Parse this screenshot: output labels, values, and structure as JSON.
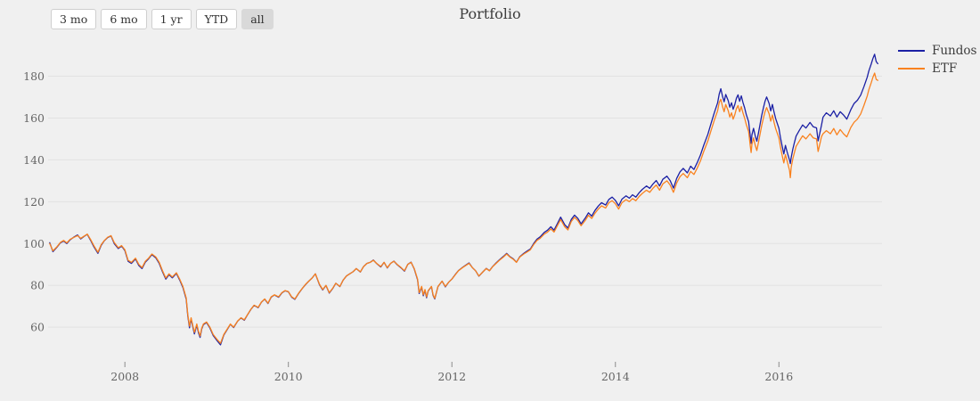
{
  "title": "Portfolio",
  "range_buttons": [
    {
      "label": "3 mo",
      "active": false
    },
    {
      "label": "6 mo",
      "active": false
    },
    {
      "label": "1 yr",
      "active": false
    },
    {
      "label": "YTD",
      "active": false
    },
    {
      "label": "all",
      "active": true
    }
  ],
  "colors": {
    "background": "#f0f0f0",
    "gridline": "#e2e2e2",
    "tick_mark": "#8c8c8c",
    "tick_text": "#666666",
    "fundos": "#1b20a4",
    "etf": "#f9821f"
  },
  "chart_data": {
    "type": "line",
    "title": "Portfolio",
    "xlabel": "",
    "ylabel": "",
    "legend_position": "right",
    "grid": "horizontal-only",
    "xlim": [
      2007.05,
      2017.25
    ],
    "ylim": [
      46,
      196
    ],
    "x_ticks": [
      2008,
      2010,
      2012,
      2014,
      2016
    ],
    "y_ticks": [
      60,
      80,
      100,
      120,
      140,
      160,
      180
    ],
    "series": [
      {
        "name": "Fundos",
        "color": "#1b20a4"
      },
      {
        "name": "ETF",
        "color": "#f9821f"
      }
    ],
    "points_format": [
      "year",
      "Fundos",
      "ETF"
    ],
    "points": [
      [
        2007.08,
        100.4,
        100.0
      ],
      [
        2007.12,
        96.1,
        96.5
      ],
      [
        2007.17,
        98.3,
        98.5
      ],
      [
        2007.21,
        100.3,
        100.5
      ],
      [
        2007.25,
        101.2,
        101.5
      ],
      [
        2007.29,
        100.0,
        100.3
      ],
      [
        2007.33,
        101.8,
        102.0
      ],
      [
        2007.38,
        103.2,
        103.0
      ],
      [
        2007.42,
        104.1,
        103.8
      ],
      [
        2007.46,
        102.2,
        102.5
      ],
      [
        2007.5,
        103.4,
        103.5
      ],
      [
        2007.54,
        104.4,
        104.5
      ],
      [
        2007.58,
        101.6,
        102.0
      ],
      [
        2007.62,
        98.5,
        99.0
      ],
      [
        2007.67,
        95.3,
        95.8
      ],
      [
        2007.71,
        99.2,
        99.5
      ],
      [
        2007.75,
        101.4,
        101.5
      ],
      [
        2007.79,
        102.9,
        103.0
      ],
      [
        2007.83,
        103.6,
        103.8
      ],
      [
        2007.87,
        100.0,
        100.5
      ],
      [
        2007.92,
        97.6,
        98.0
      ],
      [
        2007.96,
        98.8,
        99.0
      ],
      [
        2008.0,
        96.6,
        97.0
      ],
      [
        2008.04,
        91.5,
        92.0
      ],
      [
        2008.08,
        90.5,
        91.0
      ],
      [
        2008.13,
        92.6,
        93.0
      ],
      [
        2008.17,
        89.5,
        90.0
      ],
      [
        2008.21,
        88.0,
        88.5
      ],
      [
        2008.25,
        91.1,
        91.5
      ],
      [
        2008.29,
        92.7,
        93.0
      ],
      [
        2008.33,
        94.7,
        95.0
      ],
      [
        2008.38,
        93.1,
        93.5
      ],
      [
        2008.42,
        90.5,
        91.0
      ],
      [
        2008.46,
        86.5,
        87.0
      ],
      [
        2008.5,
        83.0,
        83.5
      ],
      [
        2008.54,
        85.1,
        85.5
      ],
      [
        2008.58,
        83.6,
        84.0
      ],
      [
        2008.63,
        85.7,
        86.0
      ],
      [
        2008.67,
        82.5,
        83.0
      ],
      [
        2008.71,
        79.0,
        79.5
      ],
      [
        2008.75,
        73.4,
        74.0
      ],
      [
        2008.77,
        65.3,
        66.0
      ],
      [
        2008.79,
        59.7,
        60.5
      ],
      [
        2008.81,
        64.0,
        64.5
      ],
      [
        2008.83,
        60.3,
        61.0
      ],
      [
        2008.85,
        56.8,
        57.5
      ],
      [
        2008.88,
        61.0,
        61.5
      ],
      [
        2008.9,
        57.3,
        58.0
      ],
      [
        2008.92,
        55.1,
        55.8
      ],
      [
        2008.94,
        59.1,
        59.5
      ],
      [
        2008.96,
        61.2,
        61.5
      ],
      [
        2009.0,
        62.2,
        62.5
      ],
      [
        2009.04,
        59.6,
        60.0
      ],
      [
        2009.08,
        56.0,
        56.5
      ],
      [
        2009.13,
        53.4,
        54.0
      ],
      [
        2009.17,
        51.6,
        52.3
      ],
      [
        2009.21,
        56.2,
        56.5
      ],
      [
        2009.25,
        58.8,
        59.0
      ],
      [
        2009.29,
        61.4,
        61.5
      ],
      [
        2009.33,
        59.8,
        60.0
      ],
      [
        2009.38,
        62.9,
        63.0
      ],
      [
        2009.42,
        64.4,
        64.5
      ],
      [
        2009.46,
        63.3,
        63.5
      ],
      [
        2009.5,
        65.9,
        66.0
      ],
      [
        2009.54,
        68.4,
        68.5
      ],
      [
        2009.58,
        70.4,
        70.5
      ],
      [
        2009.63,
        69.3,
        69.5
      ],
      [
        2009.67,
        71.9,
        72.0
      ],
      [
        2009.71,
        73.4,
        73.5
      ],
      [
        2009.75,
        71.3,
        71.5
      ],
      [
        2009.79,
        74.4,
        74.5
      ],
      [
        2009.83,
        75.4,
        75.5
      ],
      [
        2009.88,
        74.3,
        74.5
      ],
      [
        2009.92,
        76.4,
        76.5
      ],
      [
        2009.96,
        77.4,
        77.5
      ],
      [
        2010.0,
        76.9,
        77.0
      ],
      [
        2010.04,
        74.3,
        74.5
      ],
      [
        2010.08,
        73.3,
        73.5
      ],
      [
        2010.13,
        76.4,
        76.5
      ],
      [
        2010.17,
        78.5,
        78.5
      ],
      [
        2010.21,
        80.4,
        80.5
      ],
      [
        2010.25,
        82.0,
        82.0
      ],
      [
        2010.29,
        83.5,
        83.5
      ],
      [
        2010.33,
        85.5,
        85.5
      ],
      [
        2010.38,
        80.3,
        80.5
      ],
      [
        2010.42,
        77.8,
        78.0
      ],
      [
        2010.46,
        79.9,
        80.0
      ],
      [
        2010.5,
        76.3,
        76.5
      ],
      [
        2010.54,
        78.4,
        78.5
      ],
      [
        2010.58,
        81.0,
        81.0
      ],
      [
        2010.63,
        79.4,
        79.5
      ],
      [
        2010.67,
        82.5,
        82.5
      ],
      [
        2010.71,
        84.5,
        84.5
      ],
      [
        2010.75,
        85.5,
        85.5
      ],
      [
        2010.79,
        86.5,
        86.5
      ],
      [
        2010.83,
        88.0,
        88.0
      ],
      [
        2010.88,
        86.4,
        86.5
      ],
      [
        2010.92,
        89.0,
        89.0
      ],
      [
        2010.96,
        90.5,
        90.5
      ],
      [
        2011.0,
        91.0,
        91.0
      ],
      [
        2011.04,
        92.1,
        92.0
      ],
      [
        2011.08,
        90.4,
        90.5
      ],
      [
        2011.13,
        88.8,
        89.0
      ],
      [
        2011.17,
        91.0,
        91.0
      ],
      [
        2011.21,
        88.3,
        88.5
      ],
      [
        2011.25,
        90.5,
        90.5
      ],
      [
        2011.29,
        91.6,
        91.5
      ],
      [
        2011.33,
        89.9,
        90.0
      ],
      [
        2011.38,
        88.3,
        88.5
      ],
      [
        2011.42,
        86.8,
        87.0
      ],
      [
        2011.46,
        90.0,
        90.0
      ],
      [
        2011.5,
        91.1,
        91.0
      ],
      [
        2011.54,
        87.8,
        88.0
      ],
      [
        2011.58,
        82.7,
        83.0
      ],
      [
        2011.6,
        76.1,
        76.5
      ],
      [
        2011.63,
        79.2,
        79.5
      ],
      [
        2011.65,
        75.0,
        75.5
      ],
      [
        2011.67,
        77.7,
        78.0
      ],
      [
        2011.69,
        74.1,
        74.5
      ],
      [
        2011.71,
        77.3,
        77.5
      ],
      [
        2011.75,
        79.4,
        79.5
      ],
      [
        2011.77,
        75.2,
        75.5
      ],
      [
        2011.79,
        73.5,
        73.8
      ],
      [
        2011.83,
        79.4,
        79.5
      ],
      [
        2011.88,
        82.0,
        82.0
      ],
      [
        2011.92,
        79.3,
        79.5
      ],
      [
        2011.96,
        81.5,
        81.5
      ],
      [
        2012.0,
        83.0,
        83.0
      ],
      [
        2012.04,
        85.1,
        85.0
      ],
      [
        2012.08,
        87.1,
        87.0
      ],
      [
        2012.13,
        88.6,
        88.5
      ],
      [
        2012.17,
        89.7,
        89.5
      ],
      [
        2012.21,
        90.7,
        90.5
      ],
      [
        2012.25,
        88.5,
        88.5
      ],
      [
        2012.29,
        87.0,
        87.0
      ],
      [
        2012.33,
        84.4,
        84.5
      ],
      [
        2012.38,
        86.5,
        86.5
      ],
      [
        2012.42,
        88.1,
        88.0
      ],
      [
        2012.46,
        87.0,
        87.0
      ],
      [
        2012.5,
        89.1,
        89.0
      ],
      [
        2012.54,
        90.7,
        90.5
      ],
      [
        2012.58,
        92.2,
        92.0
      ],
      [
        2012.63,
        93.8,
        93.5
      ],
      [
        2012.67,
        95.3,
        95.0
      ],
      [
        2012.71,
        93.7,
        93.5
      ],
      [
        2012.75,
        92.7,
        92.5
      ],
      [
        2012.79,
        91.1,
        91.0
      ],
      [
        2012.83,
        93.7,
        93.5
      ],
      [
        2012.88,
        95.3,
        95.0
      ],
      [
        2012.92,
        96.4,
        96.0
      ],
      [
        2012.96,
        97.4,
        97.0
      ],
      [
        2013.0,
        100.0,
        99.5
      ],
      [
        2013.04,
        102.1,
        101.5
      ],
      [
        2013.08,
        103.2,
        102.5
      ],
      [
        2013.13,
        105.3,
        104.5
      ],
      [
        2013.17,
        106.4,
        105.5
      ],
      [
        2013.21,
        108.0,
        107.0
      ],
      [
        2013.25,
        106.4,
        105.5
      ],
      [
        2013.29,
        109.5,
        108.5
      ],
      [
        2013.33,
        112.6,
        111.5
      ],
      [
        2013.38,
        109.0,
        108.0
      ],
      [
        2013.42,
        107.4,
        106.5
      ],
      [
        2013.46,
        111.5,
        110.5
      ],
      [
        2013.5,
        113.6,
        112.5
      ],
      [
        2013.54,
        112.0,
        111.0
      ],
      [
        2013.58,
        109.4,
        108.5
      ],
      [
        2013.63,
        112.1,
        111.0
      ],
      [
        2013.67,
        114.7,
        113.5
      ],
      [
        2013.71,
        113.1,
        112.0
      ],
      [
        2013.75,
        115.8,
        114.5
      ],
      [
        2013.79,
        117.9,
        116.5
      ],
      [
        2013.83,
        119.5,
        118.0
      ],
      [
        2013.88,
        118.4,
        117.0
      ],
      [
        2013.92,
        121.1,
        119.5
      ],
      [
        2013.96,
        122.2,
        120.5
      ],
      [
        2014.0,
        120.6,
        119.0
      ],
      [
        2014.04,
        118.0,
        116.5
      ],
      [
        2014.08,
        121.2,
        119.5
      ],
      [
        2014.13,
        122.8,
        121.0
      ],
      [
        2014.17,
        121.7,
        120.0
      ],
      [
        2014.21,
        123.3,
        121.5
      ],
      [
        2014.25,
        122.2,
        120.5
      ],
      [
        2014.29,
        124.3,
        122.5
      ],
      [
        2014.33,
        125.9,
        124.0
      ],
      [
        2014.38,
        127.5,
        125.5
      ],
      [
        2014.42,
        126.4,
        124.5
      ],
      [
        2014.46,
        128.5,
        126.5
      ],
      [
        2014.5,
        130.1,
        128.0
      ],
      [
        2014.54,
        127.5,
        125.5
      ],
      [
        2014.58,
        130.7,
        128.5
      ],
      [
        2014.63,
        132.2,
        130.0
      ],
      [
        2014.67,
        130.1,
        128.0
      ],
      [
        2014.71,
        126.5,
        124.5
      ],
      [
        2014.75,
        131.2,
        129.0
      ],
      [
        2014.79,
        134.3,
        132.0
      ],
      [
        2014.83,
        135.9,
        133.5
      ],
      [
        2014.88,
        133.8,
        131.5
      ],
      [
        2014.92,
        137.0,
        134.5
      ],
      [
        2014.96,
        135.4,
        133.0
      ],
      [
        2015.0,
        138.6,
        136.0
      ],
      [
        2015.04,
        142.3,
        139.5
      ],
      [
        2015.08,
        147.0,
        144.0
      ],
      [
        2015.13,
        152.2,
        149.0
      ],
      [
        2015.17,
        157.4,
        154.0
      ],
      [
        2015.21,
        162.6,
        159.0
      ],
      [
        2015.25,
        167.3,
        163.5
      ],
      [
        2015.27,
        171.5,
        167.5
      ],
      [
        2015.29,
        174.0,
        169.0
      ],
      [
        2015.31,
        170.4,
        165.5
      ],
      [
        2015.33,
        167.8,
        163.0
      ],
      [
        2015.35,
        171.3,
        166.5
      ],
      [
        2015.38,
        168.3,
        163.5
      ],
      [
        2015.4,
        165.2,
        160.5
      ],
      [
        2015.42,
        167.3,
        162.5
      ],
      [
        2015.44,
        164.2,
        159.5
      ],
      [
        2015.46,
        166.4,
        161.5
      ],
      [
        2015.48,
        169.5,
        164.5
      ],
      [
        2015.5,
        171.1,
        166.0
      ],
      [
        2015.52,
        168.0,
        163.0
      ],
      [
        2015.54,
        170.6,
        165.5
      ],
      [
        2015.56,
        167.5,
        162.5
      ],
      [
        2015.58,
        164.9,
        160.0
      ],
      [
        2015.6,
        161.8,
        157.0
      ],
      [
        2015.63,
        158.2,
        153.5
      ],
      [
        2015.65,
        151.0,
        146.5
      ],
      [
        2015.66,
        147.9,
        143.5
      ],
      [
        2015.67,
        152.0,
        147.5
      ],
      [
        2015.69,
        155.1,
        150.5
      ],
      [
        2015.71,
        151.5,
        147.0
      ],
      [
        2015.73,
        148.9,
        144.5
      ],
      [
        2015.75,
        153.0,
        148.5
      ],
      [
        2015.77,
        157.2,
        152.5
      ],
      [
        2015.79,
        161.3,
        156.5
      ],
      [
        2015.81,
        164.9,
        160.0
      ],
      [
        2015.83,
        168.0,
        163.0
      ],
      [
        2015.85,
        170.1,
        165.0
      ],
      [
        2015.88,
        167.0,
        162.0
      ],
      [
        2015.9,
        163.4,
        158.5
      ],
      [
        2015.92,
        166.5,
        161.5
      ],
      [
        2015.94,
        162.9,
        158.0
      ],
      [
        2015.96,
        159.8,
        155.0
      ],
      [
        2016.0,
        155.1,
        150.5
      ],
      [
        2016.02,
        150.5,
        146.0
      ],
      [
        2016.04,
        146.4,
        142.0
      ],
      [
        2016.06,
        142.8,
        138.5
      ],
      [
        2016.08,
        146.9,
        142.5
      ],
      [
        2016.1,
        143.8,
        139.5
      ],
      [
        2016.13,
        139.9,
        135.0
      ],
      [
        2016.14,
        138.2,
        131.5
      ],
      [
        2016.15,
        141.2,
        136.5
      ],
      [
        2016.17,
        145.1,
        140.5
      ],
      [
        2016.19,
        148.3,
        143.5
      ],
      [
        2016.21,
        151.4,
        146.5
      ],
      [
        2016.25,
        154.1,
        149.0
      ],
      [
        2016.29,
        156.7,
        151.5
      ],
      [
        2016.33,
        155.2,
        150.0
      ],
      [
        2016.38,
        157.9,
        152.5
      ],
      [
        2016.42,
        155.8,
        150.5
      ],
      [
        2016.46,
        155.3,
        150.0
      ],
      [
        2016.48,
        149.1,
        144.0
      ],
      [
        2016.5,
        152.8,
        147.5
      ],
      [
        2016.52,
        156.4,
        151.0
      ],
      [
        2016.54,
        160.4,
        152.5
      ],
      [
        2016.58,
        162.5,
        154.0
      ],
      [
        2016.63,
        161.0,
        152.5
      ],
      [
        2016.67,
        163.5,
        155.0
      ],
      [
        2016.71,
        160.5,
        152.0
      ],
      [
        2016.75,
        163.0,
        154.5
      ],
      [
        2016.79,
        161.5,
        152.5
      ],
      [
        2016.83,
        159.5,
        151.0
      ],
      [
        2016.88,
        164.0,
        155.5
      ],
      [
        2016.92,
        167.0,
        158.0
      ],
      [
        2016.96,
        168.5,
        159.5
      ],
      [
        2017.0,
        171.0,
        162.0
      ],
      [
        2017.04,
        175.0,
        166.0
      ],
      [
        2017.08,
        179.5,
        170.5
      ],
      [
        2017.1,
        182.5,
        173.5
      ],
      [
        2017.13,
        186.0,
        177.0
      ],
      [
        2017.15,
        188.5,
        179.5
      ],
      [
        2017.17,
        190.5,
        181.5
      ],
      [
        2017.19,
        187.0,
        178.5
      ],
      [
        2017.21,
        186.0,
        178.0
      ]
    ]
  }
}
